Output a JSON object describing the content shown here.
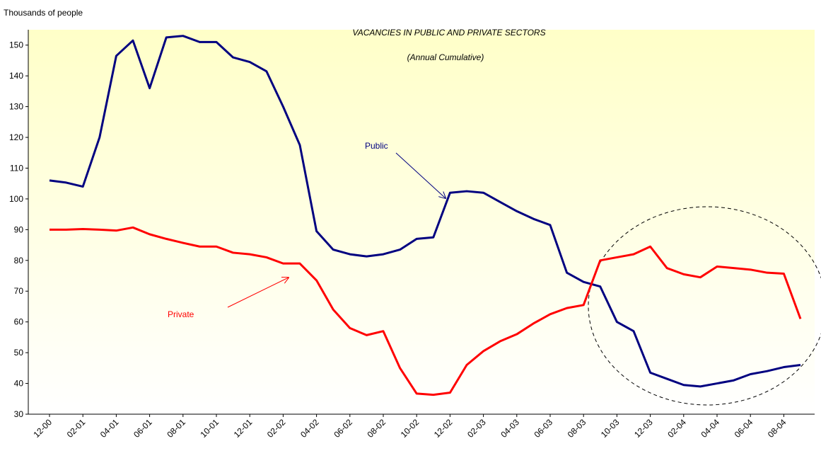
{
  "chart_data": {
    "type": "line",
    "title": "VACANCIES IN PUBLIC AND PRIVATE SECTORS",
    "subtitle": "(Annual Cumulative)",
    "y_label": "Thousands of people",
    "categories": [
      "12-00",
      null,
      "02-01",
      null,
      "04-01",
      null,
      "06-01",
      null,
      "08-01",
      null,
      "10-01",
      null,
      "12-01",
      null,
      "02-02",
      null,
      "04-02",
      null,
      "06-02",
      null,
      "08-02",
      null,
      "10-02",
      null,
      "12-02",
      null,
      "02-03",
      null,
      "04-03",
      null,
      "06-03",
      null,
      "08-03",
      null,
      "10-03",
      null,
      "12-03",
      null,
      "02-04",
      null,
      "04-04",
      null,
      "06-04",
      null,
      "08-04",
      null
    ],
    "series": [
      {
        "name": "Public",
        "color": "#000080",
        "values": [
          106,
          105.3,
          104,
          120,
          146.5,
          151.5,
          136,
          152.5,
          153,
          151,
          151,
          146,
          144.5,
          141.5,
          130,
          117.5,
          89.5,
          83.5,
          82,
          81.3,
          82,
          83.5,
          87,
          87.5,
          102,
          102.5,
          102,
          99,
          96,
          93.5,
          91.5,
          76,
          73,
          71.5,
          60,
          57,
          43.5,
          41.5,
          39.5,
          39,
          40,
          41,
          43,
          44,
          45.3,
          46
        ]
      },
      {
        "name": "Private",
        "color": "#ff0000",
        "values": [
          90,
          90,
          90.2,
          90,
          89.7,
          90.7,
          88.5,
          87,
          85.7,
          84.5,
          84.5,
          82.5,
          82,
          81,
          79,
          79,
          73.5,
          64,
          58,
          55.7,
          57,
          45,
          36.7,
          36.3,
          37,
          46,
          50.5,
          53.7,
          56,
          59.5,
          62.5,
          64.5,
          65.5,
          80,
          81,
          82,
          84.5,
          77.5,
          75.5,
          74.5,
          78,
          77.5,
          77,
          76,
          75.7,
          61
        ]
      }
    ],
    "ylim": [
      30,
      155
    ],
    "yticks": [
      30,
      40,
      50,
      60,
      70,
      80,
      90,
      100,
      110,
      120,
      130,
      140,
      150
    ],
    "grid": false
  }
}
